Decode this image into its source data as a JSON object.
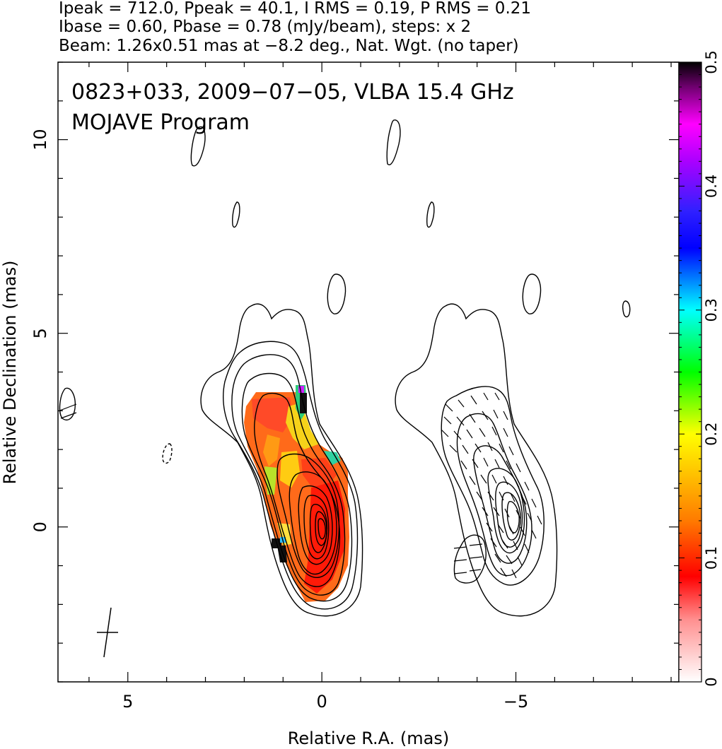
{
  "header": {
    "line1": "Ipeak = 712.0, Ppeak = 40.1, I RMS = 0.19, P RMS = 0.21",
    "line2": "Ibase = 0.60, Pbase = 0.78 (mJy/beam), steps: x 2",
    "line3": "Beam: 1.26x0.51 mas at −8.2 deg., Nat. Wgt. (no taper)"
  },
  "annotation": {
    "line1": "0823+033, 2009−07−05, VLBA 15.4 GHz",
    "line2": "MOJAVE Program"
  },
  "chart_data": {
    "type": "heatmap",
    "xlabel": "Relative R.A. (mas)",
    "ylabel": "Relative Declination (mas)",
    "xlim": [
      6.8,
      -9.2
    ],
    "ylim": [
      -4.0,
      12.0
    ],
    "x_ticks": [
      {
        "value": 5,
        "label": "5"
      },
      {
        "value": 0,
        "label": "0"
      },
      {
        "value": -5,
        "label": "−5"
      }
    ],
    "y_ticks": [
      {
        "value": 10,
        "label": "10"
      },
      {
        "value": 5,
        "label": "5"
      },
      {
        "value": 0,
        "label": "0"
      }
    ],
    "colorbar": {
      "range": [
        0,
        0.5
      ],
      "ticks": [
        {
          "value": 0,
          "label": "0"
        },
        {
          "value": 0.1,
          "label": "0.1"
        },
        {
          "value": 0.2,
          "label": "0.2"
        },
        {
          "value": 0.3,
          "label": "0.3"
        },
        {
          "value": 0.4,
          "label": "0.4"
        },
        {
          "value": 0.5,
          "label": "0.5"
        }
      ],
      "stops": [
        {
          "value": 0.0,
          "color": "#ffffff"
        },
        {
          "value": 0.05,
          "color": "#ff9090"
        },
        {
          "value": 0.085,
          "color": "#ff0000"
        },
        {
          "value": 0.13,
          "color": "#ff7a00"
        },
        {
          "value": 0.2,
          "color": "#ffff00"
        },
        {
          "value": 0.25,
          "color": "#00ff00"
        },
        {
          "value": 0.3,
          "color": "#00ffff"
        },
        {
          "value": 0.35,
          "color": "#0000ff"
        },
        {
          "value": 0.38,
          "color": "#3020ff"
        },
        {
          "value": 0.42,
          "color": "#aa00ff"
        },
        {
          "value": 0.45,
          "color": "#ff00ff"
        },
        {
          "value": 0.48,
          "color": "#700070"
        },
        {
          "value": 0.5,
          "color": "#000000"
        }
      ]
    },
    "stokes_i_peak_mjy_per_beam": 712.0,
    "polarized_peak_mjy_per_beam": 40.1,
    "i_rms": 0.19,
    "p_rms": 0.21,
    "i_base": 0.6,
    "p_base": 0.78,
    "contour_step_factor": 2,
    "beam": {
      "major_mas": 1.26,
      "minor_mas": 0.51,
      "pa_deg": -8.2,
      "weighting": "Natural",
      "taper": "none"
    }
  }
}
